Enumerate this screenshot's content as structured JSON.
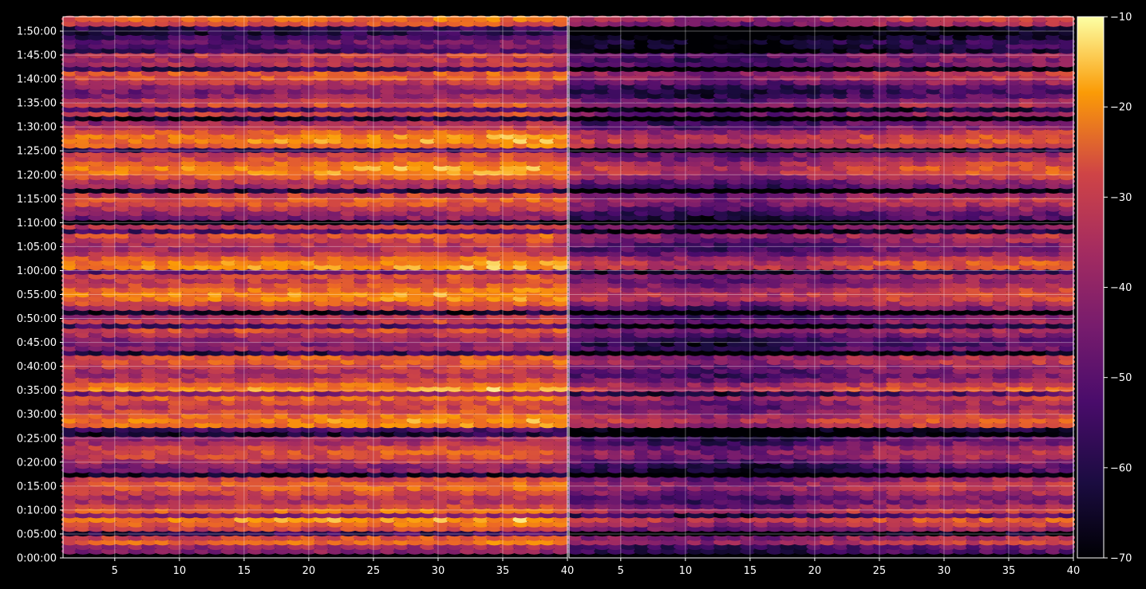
{
  "chart_data": {
    "type": "heatmap",
    "title": "",
    "xlabel": "",
    "ylabel": "",
    "panels": [
      {
        "name": "",
        "xlim": [
          1,
          40
        ],
        "xticks": [
          5,
          10,
          15,
          20,
          25,
          30,
          35,
          40
        ]
      },
      {
        "name": "",
        "xlim": [
          1,
          40
        ],
        "xticks": [
          5,
          10,
          15,
          20,
          25,
          30,
          35,
          40
        ]
      }
    ],
    "ylim_seconds": [
      0,
      6780
    ],
    "yticks": [
      "0:00:00",
      "0:05:00",
      "0:10:00",
      "0:15:00",
      "0:20:00",
      "0:25:00",
      "0:30:00",
      "0:35:00",
      "0:40:00",
      "0:45:00",
      "0:50:00",
      "0:55:00",
      "1:00:00",
      "1:05:00",
      "1:10:00",
      "1:15:00",
      "1:20:00",
      "1:25:00",
      "1:30:00",
      "1:35:00",
      "1:40:00",
      "1:45:00",
      "1:50:00"
    ],
    "colorbar": {
      "colormap": "inferno",
      "range": [
        -70,
        -10
      ],
      "ticks": [
        -10,
        -20,
        -30,
        -40,
        -50,
        -60,
        -70
      ]
    },
    "grid": true,
    "colors": {
      "background": "#000000",
      "grid": "#ffffff",
      "text": "#ffffff"
    }
  }
}
